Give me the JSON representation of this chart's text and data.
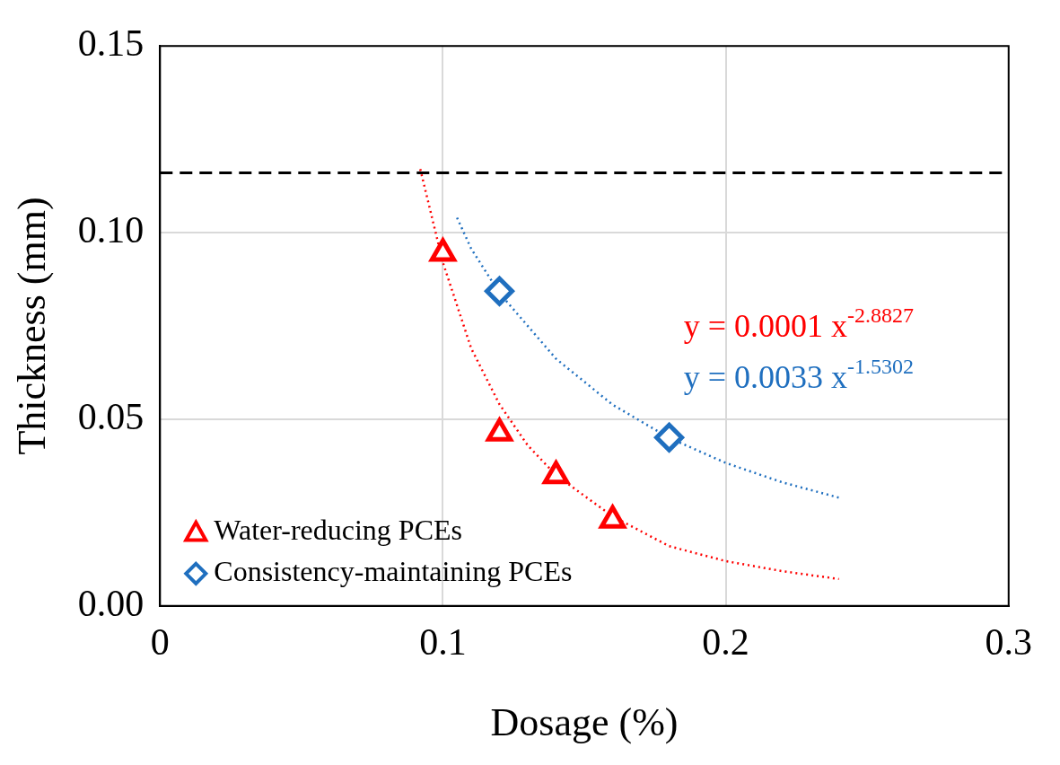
{
  "chart_data": {
    "type": "scatter",
    "xlabel": "Dosage (%)",
    "ylabel": "Thickness (mm)",
    "xlim": [
      0,
      0.3
    ],
    "xticks": [
      0,
      0.1,
      0.2,
      0.3
    ],
    "ylim": [
      0,
      0.15
    ],
    "yticks": [
      {
        "value": 0,
        "label": "0.00"
      },
      {
        "value": 0.05,
        "label": "0.05"
      },
      {
        "value": 0.1,
        "label": "0.10"
      },
      {
        "value": 0.15,
        "label": "0.15"
      }
    ],
    "grid": true,
    "legend": "bottom left",
    "series": [
      {
        "name": "Water-reducing PCEs",
        "color": "#ff0000",
        "marker": "triangle",
        "x": [
          0.1,
          0.12,
          0.14,
          0.16
        ],
        "values": [
          0.0945,
          0.0463,
          0.0349,
          0.023
        ]
      },
      {
        "name": "Consistency-maintaining PCEs",
        "color": "#1f6fbf",
        "marker": "diamond",
        "x": [
          0.12,
          0.18
        ],
        "values": [
          0.0843,
          0.0451
        ]
      },
      {
        "type": "line",
        "color": "#ff0000",
        "line_style": "dotted",
        "x": [
          0.092,
          0.1,
          0.11,
          0.12,
          0.13,
          0.14,
          0.16,
          0.18,
          0.2,
          0.22,
          0.24
        ],
        "values": [
          0.117,
          0.092,
          0.069,
          0.054,
          0.043,
          0.035,
          0.024,
          0.016,
          0.012,
          0.0093,
          0.0072
        ]
      },
      {
        "type": "line",
        "color": "#1f6fbf",
        "line_style": "dotted",
        "x": [
          0.105,
          0.11,
          0.12,
          0.14,
          0.16,
          0.18,
          0.2,
          0.22,
          0.24
        ],
        "values": [
          0.104,
          0.0957,
          0.0838,
          0.0662,
          0.0539,
          0.045,
          0.0383,
          0.0331,
          0.029
        ]
      }
    ],
    "ref_lines": [
      {
        "axis": "y",
        "value": 0.116,
        "color": "#000000",
        "line_style": "dashed"
      }
    ],
    "annotations": [
      "y = 0.0001 x$^{-2.8827}$",
      "y = 0.0033 x$^{-1.5302}$"
    ]
  }
}
